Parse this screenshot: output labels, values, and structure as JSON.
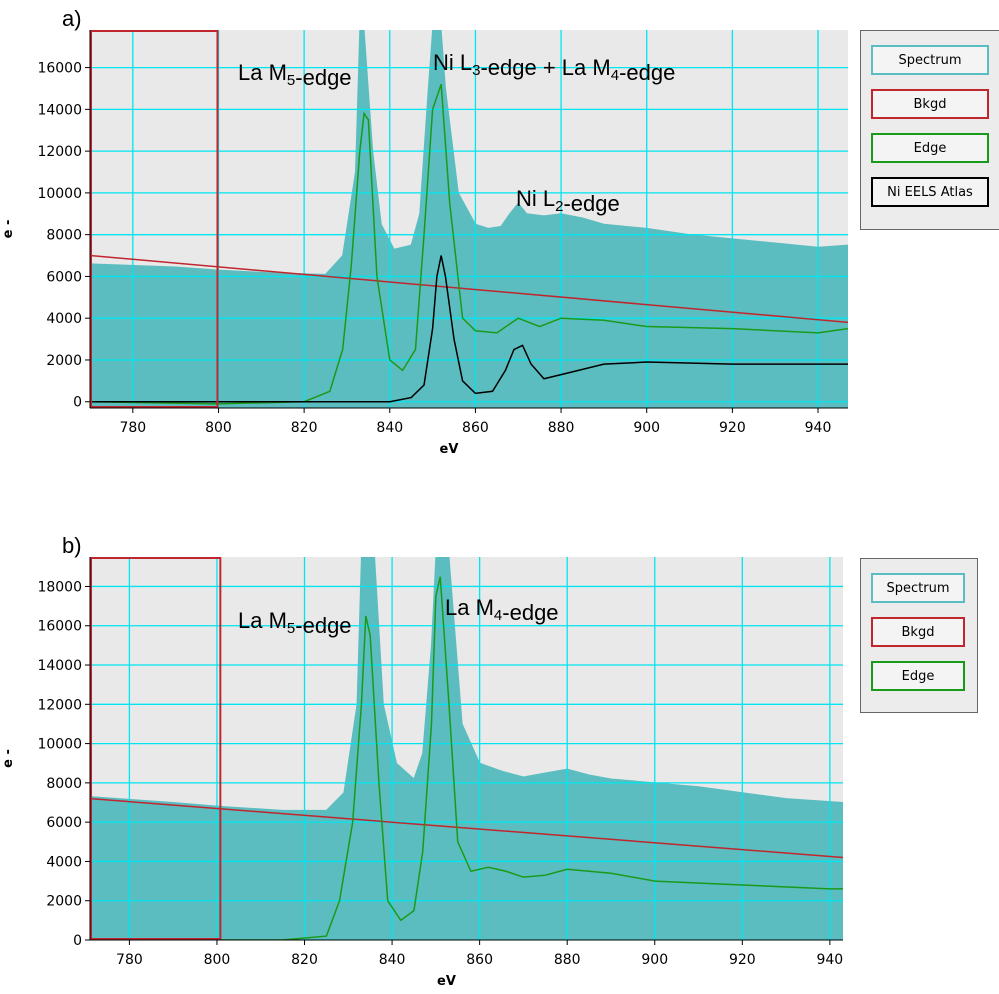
{
  "colors": {
    "spectrum": "#5bbdbf",
    "background_fit": "#c0262d",
    "edge": "#1a9a1a",
    "atlas": "#000000",
    "plot_bg": "#e9e9e9",
    "grid": "#00e6f0"
  },
  "chart_data": [
    {
      "panel_label": "a)",
      "type": "area",
      "xlabel": "eV",
      "ylabel": "e -",
      "xlim": [
        770,
        947
      ],
      "ylim": [
        -300,
        17800
      ],
      "xticks": [
        780,
        800,
        820,
        840,
        860,
        880,
        900,
        920,
        940
      ],
      "yticks": [
        0,
        2000,
        4000,
        6000,
        8000,
        10000,
        12000,
        14000,
        16000
      ],
      "legend": [
        "Spectrum",
        "Bkgd",
        "Edge",
        "Ni EELS Atlas"
      ],
      "annotations": [
        {
          "prefix": "La M",
          "sub": "5",
          "suffix": "-edge"
        },
        {
          "prefix": "Ni L",
          "sub": "3",
          "suffix": "-edge + La M",
          "sub2": "4",
          "suffix2": "-edge"
        },
        {
          "prefix": "Ni L",
          "sub": "2",
          "suffix": "-edge"
        }
      ],
      "background_window": [
        770,
        800
      ],
      "series": [
        {
          "name": "Spectrum",
          "x": [
            770,
            790,
            800,
            815,
            825,
            829,
            832,
            833,
            834,
            836,
            838,
            841,
            845,
            847,
            849,
            850,
            852,
            853,
            856,
            860,
            863,
            866,
            868,
            870,
            872,
            876,
            880,
            885,
            890,
            900,
            910,
            920,
            930,
            940,
            947
          ],
          "y": [
            6600,
            6450,
            6300,
            6150,
            6100,
            7000,
            11000,
            17800,
            17800,
            12000,
            8500,
            7300,
            7500,
            9000,
            15000,
            17800,
            17800,
            15000,
            10000,
            8500,
            8300,
            8400,
            9000,
            9500,
            9000,
            8900,
            9000,
            8800,
            8500,
            8300,
            8000,
            7800,
            7600,
            7400,
            7500
          ]
        },
        {
          "name": "Bkgd",
          "x": [
            770,
            947
          ],
          "y": [
            7000,
            3800
          ]
        },
        {
          "name": "Edge",
          "x": [
            770,
            800,
            820,
            826,
            829,
            831,
            833,
            834,
            835,
            837,
            840,
            843,
            846,
            848,
            850,
            852,
            854,
            857,
            860,
            865,
            870,
            875,
            880,
            890,
            900,
            920,
            940,
            947
          ],
          "y": [
            0,
            -100,
            0,
            500,
            2500,
            6500,
            12000,
            13800,
            13500,
            6000,
            2000,
            1500,
            2500,
            8000,
            14000,
            15200,
            9500,
            4000,
            3400,
            3300,
            4000,
            3600,
            4000,
            3900,
            3600,
            3500,
            3300,
            3500
          ]
        },
        {
          "name": "Ni EELS Atlas",
          "x": [
            770,
            840,
            845,
            848,
            850,
            851,
            852,
            853,
            855,
            857,
            860,
            864,
            867,
            869,
            871,
            873,
            876,
            880,
            890,
            900,
            920,
            940,
            947
          ],
          "y": [
            0,
            0,
            200,
            800,
            3500,
            6000,
            7000,
            6000,
            3000,
            1000,
            400,
            500,
            1500,
            2500,
            2700,
            1800,
            1100,
            1300,
            1800,
            1900,
            1800,
            1800,
            1800
          ]
        }
      ]
    },
    {
      "panel_label": "b)",
      "type": "area",
      "xlabel": "eV",
      "ylabel": "e -",
      "xlim": [
        771,
        943
      ],
      "ylim": [
        0,
        19500
      ],
      "xticks": [
        780,
        800,
        820,
        840,
        860,
        880,
        900,
        920,
        940
      ],
      "yticks": [
        0,
        2000,
        4000,
        6000,
        8000,
        10000,
        12000,
        14000,
        16000,
        18000
      ],
      "legend": [
        "Spectrum",
        "Bkgd",
        "Edge"
      ],
      "annotations": [
        {
          "prefix": "La M",
          "sub": "5",
          "suffix": "-edge"
        },
        {
          "prefix": "La M",
          "sub": "4",
          "suffix": "-edge"
        }
      ],
      "background_window": [
        771,
        801
      ],
      "series": [
        {
          "name": "Spectrum",
          "x": [
            771,
            790,
            801,
            815,
            825,
            829,
            832,
            833,
            836,
            838,
            841,
            845,
            847,
            849,
            850,
            853,
            856,
            860,
            865,
            870,
            875,
            880,
            885,
            890,
            900,
            910,
            920,
            930,
            943
          ],
          "y": [
            7300,
            7000,
            6800,
            6600,
            6600,
            7500,
            12000,
            19500,
            19500,
            12000,
            9000,
            8200,
            9500,
            15000,
            19500,
            19500,
            11000,
            9000,
            8600,
            8300,
            8500,
            8700,
            8400,
            8200,
            8000,
            7800,
            7500,
            7200,
            7000
          ]
        },
        {
          "name": "Bkgd",
          "x": [
            771,
            943
          ],
          "y": [
            7200,
            4200
          ]
        },
        {
          "name": "Edge",
          "x": [
            771,
            800,
            815,
            825,
            828,
            831,
            833,
            834,
            835,
            837,
            839,
            842,
            845,
            847,
            849,
            850,
            851,
            853,
            855,
            858,
            862,
            866,
            870,
            875,
            880,
            890,
            900,
            920,
            940,
            943
          ],
          "y": [
            0,
            -100,
            0,
            200,
            2000,
            6000,
            12000,
            16500,
            15500,
            8000,
            2000,
            1000,
            1500,
            4500,
            11000,
            17500,
            18500,
            12000,
            5000,
            3500,
            3700,
            3500,
            3200,
            3300,
            3600,
            3400,
            3000,
            2800,
            2600,
            2600
          ]
        }
      ]
    }
  ]
}
